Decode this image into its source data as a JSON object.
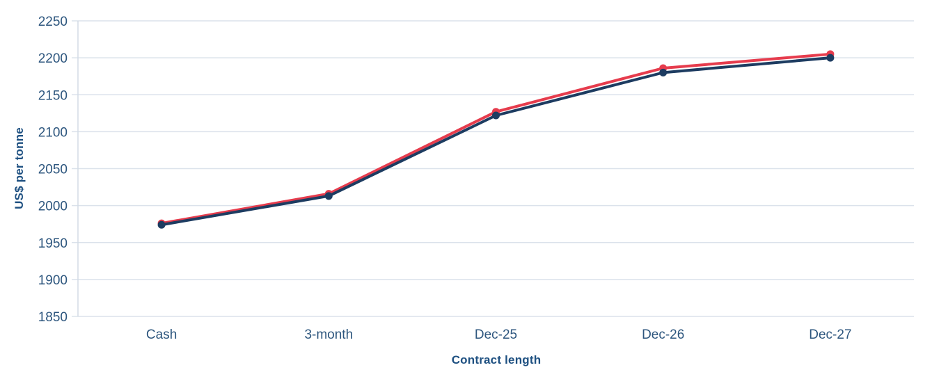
{
  "chart_data": {
    "type": "line",
    "title": "",
    "categories": [
      "Cash",
      "3-month",
      "Dec-25",
      "Dec-26",
      "Dec-27"
    ],
    "series": [
      {
        "name": "series-red",
        "color": "#e63c4d",
        "marker": "circle",
        "values": [
          1976,
          2016,
          2127,
          2186,
          2205
        ]
      },
      {
        "name": "series-navy",
        "color": "#1d3c61",
        "marker": "circle",
        "values": [
          1974,
          2013,
          2122,
          2180,
          2200
        ]
      }
    ],
    "xlabel": "Contract length",
    "ylabel": "US$ per tonne",
    "ylim": [
      1850,
      2250
    ],
    "ytick_step": 50,
    "y_tick_labels": [
      "1850",
      "1900",
      "1950",
      "2000",
      "2050",
      "2100",
      "2150",
      "2200",
      "2250"
    ],
    "grid": true,
    "legend": "none"
  },
  "colors": {
    "background": "#ffffff",
    "grid": "#dbe2eb",
    "axis_line": "#d3dce6",
    "tick_text": "#2d567e",
    "axis_title_text": "#1e5081",
    "series_red": "#e63c4d",
    "series_navy": "#1d3c61"
  }
}
